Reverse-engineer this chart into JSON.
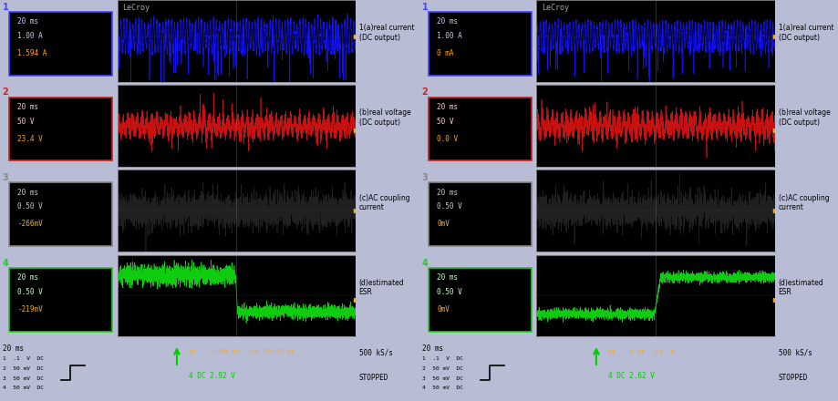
{
  "bg_color": "#b8bcd4",
  "fig_width": 9.19,
  "fig_height": 4.4,
  "panels": [
    {
      "side": "left",
      "ch1": {
        "time": "20 ms",
        "scale": "1.00 A",
        "value": "1.594 A"
      },
      "ch2": {
        "time": "20 ms",
        "scale": "50 V",
        "value": "23.4 V"
      },
      "ch3": {
        "time": "20 ms",
        "scale": "0.50 V",
        "value": "-266mV"
      },
      "ch4": {
        "time": "20 ms",
        "scale": "0.50 V",
        "value": "-219mV"
      },
      "delta": "Δt    7.966 ms  1/Δ 125.53 kz",
      "dc_val": "4 DC 2.92 V",
      "rate": "500 kS/s",
      "status": "STOPPED"
    },
    {
      "side": "right",
      "ch1": {
        "time": "20 ms",
        "scale": "1.00 A",
        "value": "0 mA"
      },
      "ch2": {
        "time": "20 ms",
        "scale": "50 V",
        "value": "0.0 V"
      },
      "ch3": {
        "time": "20 ms",
        "scale": "0.50 V",
        "value": "0mV"
      },
      "ch4": {
        "time": "20 ms",
        "scale": "0.50 V",
        "value": "0mV"
      },
      "delta": "Δt    0 μs  1/Δ  ∞",
      "dc_val": "4 DC 2.62 V",
      "rate": "500 kS/s",
      "status": "STOPPED"
    }
  ],
  "annotations": [
    "1(a)real current\n(DC output)",
    "(b)real voltage\n(DC output)",
    "(c)AC coupling\ncurrent",
    "(d)estimated\nESR"
  ],
  "scale_labels": [
    "1  .1  V  DC",
    "2  50 mV  DC",
    "3  50 mV  DC",
    "4  50 mV  DC"
  ],
  "colors": {
    "blue": "#1010ff",
    "red": "#cc1010",
    "black": "#202020",
    "green": "#10cc10",
    "orange": "#ffaa00",
    "gray": "#888888",
    "panel_bg": "#000000",
    "sidebar_bg": "#b8bcd4",
    "box1_border": "#4444ff",
    "box2_border": "#cc2222",
    "box3_border": "#888888",
    "box4_border": "#22cc22",
    "box_text_white": "#ccccff",
    "box_text_red": "#ffcccc",
    "box_text_gray": "#cccccc",
    "box_text_green": "#ccffcc"
  },
  "waveform_border": "#888888",
  "lecroy_color": "#aaaaaa"
}
